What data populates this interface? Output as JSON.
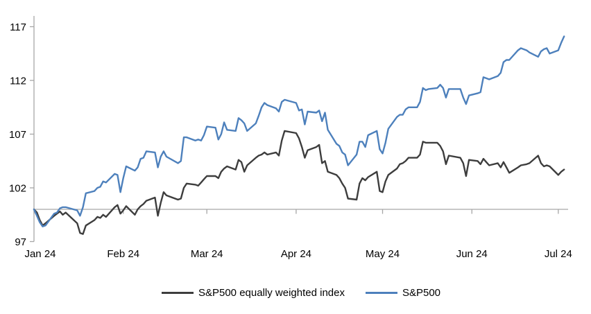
{
  "page": {
    "background": "#ffffff"
  },
  "chart_data": {
    "type": "line",
    "title": "",
    "x_axis": {
      "tick_labels": [
        "Jan 24",
        "Feb 24",
        "Mar 24",
        "Apr 24",
        "May 24",
        "Jun 24",
        "Jul 24"
      ],
      "tick_positions_day_of_year": [
        0,
        31,
        60,
        91,
        121,
        152,
        182
      ],
      "range_days": [
        0,
        184
      ]
    },
    "y_axis": {
      "tick_labels": [
        "97",
        "102",
        "107",
        "112",
        "117"
      ],
      "tick_values": [
        97,
        102,
        107,
        112,
        117
      ],
      "range": [
        97,
        117
      ],
      "baseline_value": 100
    },
    "grid": "off",
    "legend_position": "bottom-center",
    "axis_color": "#a6a6a6",
    "baseline_color": "#a6a6a6",
    "text_color": "#000000",
    "series": [
      {
        "name": "S&P500 equally weighted index",
        "color": "#3d3d3d",
        "points": [
          [
            0,
            100.0
          ],
          [
            1,
            99.7
          ],
          [
            2,
            99.0
          ],
          [
            3,
            98.5
          ],
          [
            4,
            98.7
          ],
          [
            7,
            99.4
          ],
          [
            8,
            99.6
          ],
          [
            9,
            99.8
          ],
          [
            10,
            99.5
          ],
          [
            11,
            99.7
          ],
          [
            15,
            98.7
          ],
          [
            16,
            97.8
          ],
          [
            17,
            97.7
          ],
          [
            18,
            98.5
          ],
          [
            21,
            99.0
          ],
          [
            22,
            99.3
          ],
          [
            23,
            99.2
          ],
          [
            24,
            99.5
          ],
          [
            25,
            99.3
          ],
          [
            28,
            100.2
          ],
          [
            29,
            100.4
          ],
          [
            30,
            99.6
          ],
          [
            31,
            99.9
          ],
          [
            32,
            100.3
          ],
          [
            35,
            99.5
          ],
          [
            36,
            100.0
          ],
          [
            37,
            100.3
          ],
          [
            38,
            100.5
          ],
          [
            39,
            100.8
          ],
          [
            42,
            101.1
          ],
          [
            43,
            99.4
          ],
          [
            44,
            100.6
          ],
          [
            45,
            101.6
          ],
          [
            46,
            101.3
          ],
          [
            50,
            100.9
          ],
          [
            51,
            101.0
          ],
          [
            52,
            102.0
          ],
          [
            53,
            102.4
          ],
          [
            56,
            102.3
          ],
          [
            57,
            102.2
          ],
          [
            58,
            102.5
          ],
          [
            59,
            102.8
          ],
          [
            60,
            103.1
          ],
          [
            63,
            103.1
          ],
          [
            64,
            102.9
          ],
          [
            65,
            103.5
          ],
          [
            66,
            103.8
          ],
          [
            67,
            104.0
          ],
          [
            70,
            103.7
          ],
          [
            71,
            104.6
          ],
          [
            72,
            104.4
          ],
          [
            73,
            103.5
          ],
          [
            74,
            104.1
          ],
          [
            77,
            104.8
          ],
          [
            78,
            105.0
          ],
          [
            79,
            105.1
          ],
          [
            80,
            105.3
          ],
          [
            81,
            105.1
          ],
          [
            84,
            105.3
          ],
          [
            85,
            105.0
          ],
          [
            86,
            106.4
          ],
          [
            87,
            107.3
          ],
          [
            91,
            107.1
          ],
          [
            92,
            106.6
          ],
          [
            93,
            105.8
          ],
          [
            94,
            104.8
          ],
          [
            95,
            105.5
          ],
          [
            98,
            105.8
          ],
          [
            99,
            106.0
          ],
          [
            100,
            104.3
          ],
          [
            101,
            104.5
          ],
          [
            102,
            103.5
          ],
          [
            105,
            103.2
          ],
          [
            106,
            102.9
          ],
          [
            107,
            102.4
          ],
          [
            108,
            102.0
          ],
          [
            109,
            101.0
          ],
          [
            112,
            100.9
          ],
          [
            113,
            102.4
          ],
          [
            114,
            102.9
          ],
          [
            115,
            102.7
          ],
          [
            116,
            103.0
          ],
          [
            119,
            103.5
          ],
          [
            120,
            101.7
          ],
          [
            121,
            101.6
          ],
          [
            122,
            102.6
          ],
          [
            123,
            103.2
          ],
          [
            126,
            103.8
          ],
          [
            127,
            104.2
          ],
          [
            128,
            104.3
          ],
          [
            129,
            104.5
          ],
          [
            130,
            104.8
          ],
          [
            133,
            104.8
          ],
          [
            134,
            105.1
          ],
          [
            135,
            106.3
          ],
          [
            136,
            106.2
          ],
          [
            137,
            106.2
          ],
          [
            140,
            106.2
          ],
          [
            141,
            105.9
          ],
          [
            142,
            105.4
          ],
          [
            143,
            104.2
          ],
          [
            144,
            105.0
          ],
          [
            148,
            104.8
          ],
          [
            149,
            104.3
          ],
          [
            150,
            103.1
          ],
          [
            151,
            104.6
          ],
          [
            154,
            104.5
          ],
          [
            155,
            104.2
          ],
          [
            156,
            104.7
          ],
          [
            157,
            104.4
          ],
          [
            158,
            104.1
          ],
          [
            161,
            104.3
          ],
          [
            162,
            103.9
          ],
          [
            163,
            104.4
          ],
          [
            164,
            103.9
          ],
          [
            165,
            103.4
          ],
          [
            168,
            103.9
          ],
          [
            169,
            104.1
          ],
          [
            171,
            104.2
          ],
          [
            172,
            104.3
          ],
          [
            175,
            105.0
          ],
          [
            176,
            104.3
          ],
          [
            177,
            104.0
          ],
          [
            178,
            104.1
          ],
          [
            179,
            104.0
          ],
          [
            182,
            103.2
          ],
          [
            183,
            103.5
          ],
          [
            184,
            103.7
          ]
        ]
      },
      {
        "name": "S&P500",
        "color": "#4d80bc",
        "points": [
          [
            0,
            100.0
          ],
          [
            1,
            99.4
          ],
          [
            2,
            98.8
          ],
          [
            3,
            98.4
          ],
          [
            4,
            98.5
          ],
          [
            7,
            99.6
          ],
          [
            8,
            99.7
          ],
          [
            9,
            100.1
          ],
          [
            10,
            100.2
          ],
          [
            11,
            100.2
          ],
          [
            15,
            99.9
          ],
          [
            16,
            99.4
          ],
          [
            17,
            100.2
          ],
          [
            18,
            101.5
          ],
          [
            21,
            101.7
          ],
          [
            22,
            102.0
          ],
          [
            23,
            102.1
          ],
          [
            24,
            102.6
          ],
          [
            25,
            102.5
          ],
          [
            28,
            103.3
          ],
          [
            29,
            103.2
          ],
          [
            30,
            101.6
          ],
          [
            31,
            102.9
          ],
          [
            32,
            104.0
          ],
          [
            35,
            103.6
          ],
          [
            36,
            103.9
          ],
          [
            37,
            104.7
          ],
          [
            38,
            104.8
          ],
          [
            39,
            105.4
          ],
          [
            42,
            105.3
          ],
          [
            43,
            103.9
          ],
          [
            44,
            104.9
          ],
          [
            45,
            105.4
          ],
          [
            46,
            104.9
          ],
          [
            50,
            104.3
          ],
          [
            51,
            104.5
          ],
          [
            52,
            106.7
          ],
          [
            53,
            106.7
          ],
          [
            56,
            106.4
          ],
          [
            57,
            106.5
          ],
          [
            58,
            106.4
          ],
          [
            59,
            106.9
          ],
          [
            60,
            107.7
          ],
          [
            63,
            107.6
          ],
          [
            64,
            106.5
          ],
          [
            65,
            107.0
          ],
          [
            66,
            108.1
          ],
          [
            67,
            107.4
          ],
          [
            70,
            107.3
          ],
          [
            71,
            108.5
          ],
          [
            72,
            108.3
          ],
          [
            73,
            108.0
          ],
          [
            74,
            107.3
          ],
          [
            77,
            108.0
          ],
          [
            78,
            108.7
          ],
          [
            79,
            109.5
          ],
          [
            80,
            109.9
          ],
          [
            81,
            109.7
          ],
          [
            84,
            109.4
          ],
          [
            85,
            109.1
          ],
          [
            86,
            110.0
          ],
          [
            87,
            110.2
          ],
          [
            91,
            109.9
          ],
          [
            92,
            109.2
          ],
          [
            93,
            109.3
          ],
          [
            94,
            107.9
          ],
          [
            95,
            109.1
          ],
          [
            98,
            109.0
          ],
          [
            99,
            109.2
          ],
          [
            100,
            108.2
          ],
          [
            101,
            109.0
          ],
          [
            102,
            107.4
          ],
          [
            105,
            106.1
          ],
          [
            106,
            105.9
          ],
          [
            107,
            105.3
          ],
          [
            108,
            105.1
          ],
          [
            109,
            104.1
          ],
          [
            112,
            105.1
          ],
          [
            113,
            106.3
          ],
          [
            114,
            106.3
          ],
          [
            115,
            105.8
          ],
          [
            116,
            106.9
          ],
          [
            119,
            107.3
          ],
          [
            120,
            105.6
          ],
          [
            121,
            105.2
          ],
          [
            122,
            106.2
          ],
          [
            123,
            107.5
          ],
          [
            126,
            108.6
          ],
          [
            127,
            108.8
          ],
          [
            128,
            108.8
          ],
          [
            129,
            109.3
          ],
          [
            130,
            109.5
          ],
          [
            133,
            109.5
          ],
          [
            134,
            110.0
          ],
          [
            135,
            111.3
          ],
          [
            136,
            111.1
          ],
          [
            137,
            111.2
          ],
          [
            140,
            111.3
          ],
          [
            141,
            111.6
          ],
          [
            142,
            111.3
          ],
          [
            143,
            110.4
          ],
          [
            144,
            111.2
          ],
          [
            148,
            111.2
          ],
          [
            149,
            110.4
          ],
          [
            150,
            109.8
          ],
          [
            151,
            110.6
          ],
          [
            154,
            110.8
          ],
          [
            155,
            110.9
          ],
          [
            156,
            112.3
          ],
          [
            157,
            112.2
          ],
          [
            158,
            112.1
          ],
          [
            161,
            112.4
          ],
          [
            162,
            112.7
          ],
          [
            163,
            113.7
          ],
          [
            164,
            113.9
          ],
          [
            165,
            113.9
          ],
          [
            168,
            114.8
          ],
          [
            169,
            115.0
          ],
          [
            171,
            114.8
          ],
          [
            172,
            114.6
          ],
          [
            175,
            114.2
          ],
          [
            176,
            114.7
          ],
          [
            177,
            114.9
          ],
          [
            178,
            115.0
          ],
          [
            179,
            114.5
          ],
          [
            182,
            114.8
          ],
          [
            183,
            115.5
          ],
          [
            184,
            116.1
          ]
        ]
      }
    ]
  }
}
